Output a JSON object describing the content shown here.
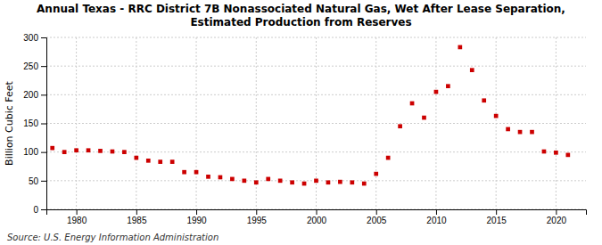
{
  "chart_data": {
    "type": "scatter",
    "title": "Annual Texas - RRC District 7B Nonassociated Natural Gas, Wet After Lease Separation,\nEstimated Production from Reserves",
    "ylabel": "Billion Cubic Feet",
    "source": "Source: U.S. Energy Information Administration",
    "x": [
      1978,
      1979,
      1980,
      1981,
      1982,
      1983,
      1984,
      1985,
      1986,
      1987,
      1988,
      1989,
      1990,
      1991,
      1992,
      1993,
      1994,
      1995,
      1996,
      1997,
      1998,
      1999,
      2000,
      2001,
      2002,
      2003,
      2004,
      2005,
      2006,
      2007,
      2008,
      2009,
      2010,
      2011,
      2012,
      2013,
      2014,
      2015,
      2016,
      2017,
      2018,
      2019,
      2020,
      2021
    ],
    "values": [
      107,
      100,
      103,
      103,
      102,
      101,
      100,
      90,
      85,
      83,
      83,
      65,
      65,
      57,
      56,
      53,
      50,
      47,
      53,
      50,
      47,
      45,
      50,
      47,
      48,
      47,
      45,
      62,
      90,
      145,
      185,
      160,
      205,
      215,
      283,
      243,
      190,
      163,
      140,
      135,
      135,
      101,
      99,
      95
    ],
    "color": "#cc0000",
    "marker": "square",
    "xlim": [
      1977.5,
      2022.5
    ],
    "ylim": [
      0,
      300
    ],
    "xticks": [
      1980,
      1985,
      1990,
      1995,
      2000,
      2005,
      2010,
      2015,
      2020
    ],
    "yticks": [
      0,
      50,
      100,
      150,
      200,
      250,
      300
    ],
    "grid": true
  }
}
